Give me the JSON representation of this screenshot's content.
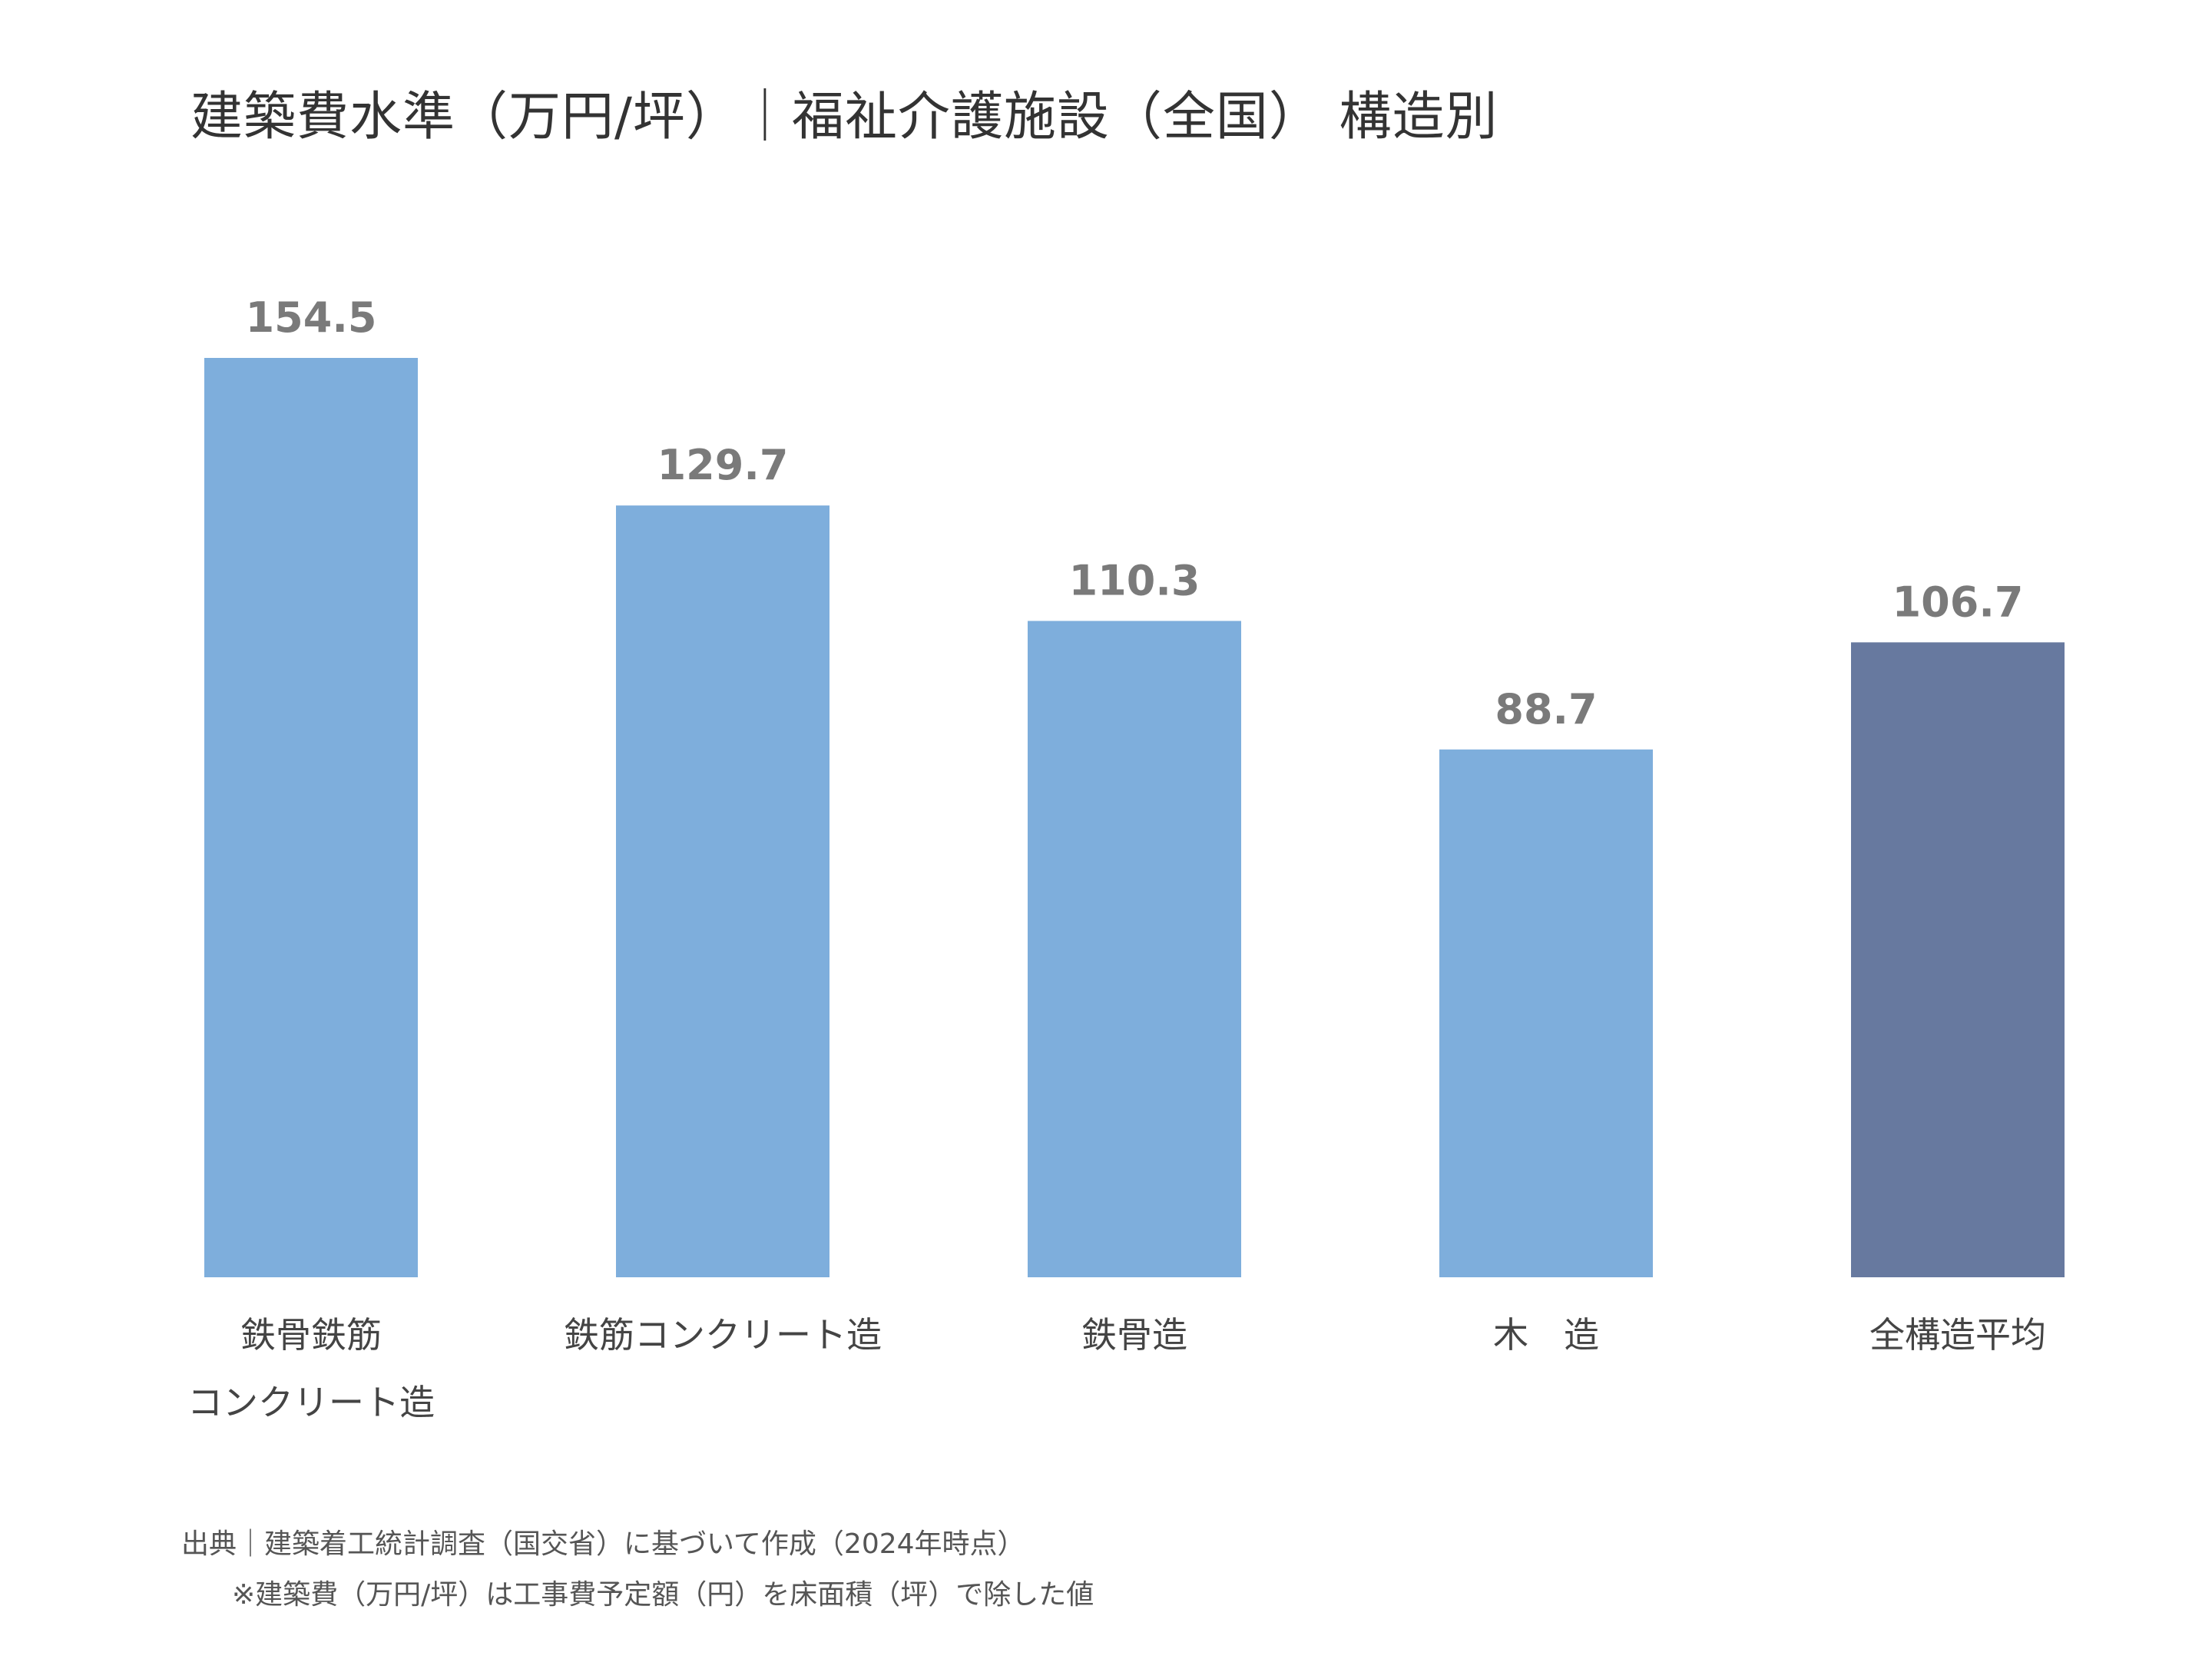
{
  "title": "建築費水準（万円/坪）｜福祉介護施設（全国） 構造別",
  "colors": {
    "bar": "#7eaedc",
    "highlight": "#67799f",
    "value_text": "#7a7a7a"
  },
  "chart_data": {
    "type": "bar",
    "title": "建築費水準（万円/坪）｜福祉介護施設（全国） 構造別",
    "categories": [
      "鉄骨鉄筋\nコンクリート造",
      "鉄筋コンクリート造",
      "鉄骨造",
      "木　造",
      "全構造平均"
    ],
    "values": [
      154.5,
      129.7,
      110.3,
      88.7,
      106.7
    ],
    "value_labels": [
      "154.5",
      "129.7",
      "110.3",
      "88.7",
      "106.7"
    ],
    "highlight_index": 4,
    "ylim": [
      0,
      154.5
    ],
    "xlabel": "",
    "ylabel": "",
    "grid": false,
    "legend": "none"
  },
  "footer": {
    "source": "出典｜建築着工統計調査（国交省）に基づいて作成（2024年時点）",
    "note": "※建築費（万円/坪）は工事費予定額（円）を床面積（坪）で除した値"
  }
}
